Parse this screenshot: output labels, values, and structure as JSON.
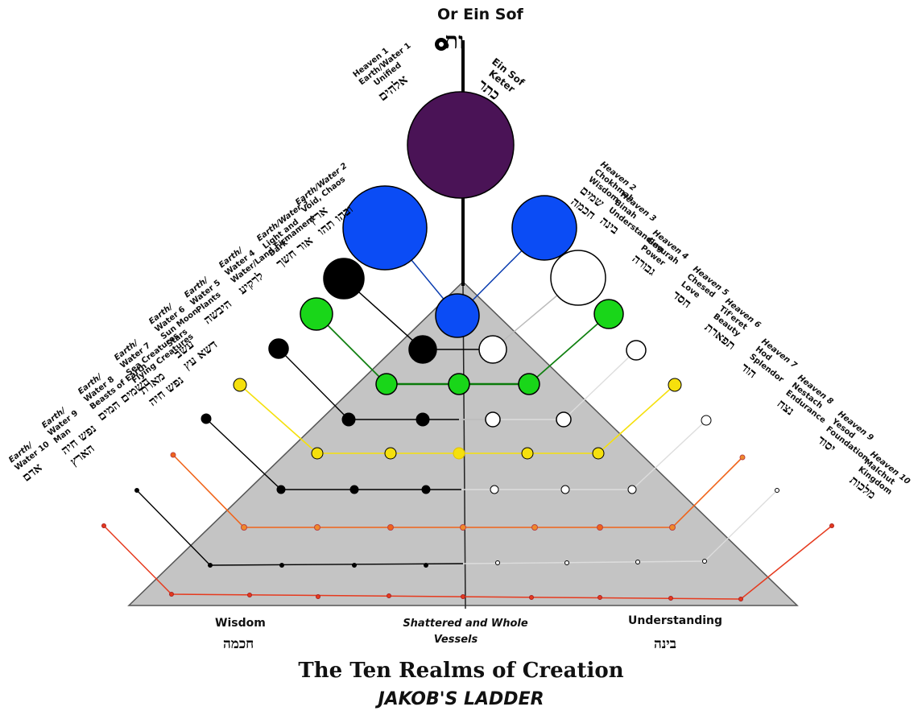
{
  "top": {
    "title": "Or Ein Sof",
    "glyph": "ות"
  },
  "crown_labels": {
    "left_lines": [
      "Heaven 1",
      "Earth/Water 1",
      "Unified"
    ],
    "left_hebrew": "אלהים",
    "right_lines": [
      "Ein Sof",
      "Keter"
    ],
    "right_hebrew": "כתר"
  },
  "left_realms": [
    {
      "lines": [
        "Earth/Water 2",
        "Void, Chaos"
      ],
      "hebrew": [
        "ארץ",
        "ובהו תהו"
      ]
    },
    {
      "lines": [
        "Earth/Water 3",
        "Light and",
        "Dark"
      ],
      "hebrew": [
        "אור חשך"
      ]
    },
    {
      "lines": [
        "Earth/",
        "Water 4",
        "Water/Land Firmament"
      ],
      "hebrew": [
        "לרקיע"
      ]
    },
    {
      "lines": [
        "Earth/",
        "Water 5",
        "Plants"
      ],
      "hebrew": [
        "היבשה"
      ]
    },
    {
      "lines": [
        "Earth/",
        "Water 6",
        "Sun Moon",
        "Stars"
      ],
      "hebrew": [
        "עשב",
        "דשא עץ"
      ]
    },
    {
      "lines": [
        "Earth/",
        "Water 7",
        "Sea Creatures",
        "Flying Creatures"
      ],
      "hebrew": [
        "מארת",
        "נפש חיה"
      ]
    },
    {
      "lines": [
        "Earth/",
        "Water 8",
        "Beasts of Earth"
      ],
      "hebrew": [
        "השמים המים"
      ]
    },
    {
      "lines": [
        "Earth/",
        "Water 9",
        "Man"
      ],
      "hebrew": [
        "נפש חיה",
        "הארץ"
      ]
    },
    {
      "lines": [
        "Earth/",
        "Water 10"
      ],
      "hebrew": [
        "אדם"
      ]
    }
  ],
  "right_realms": [
    {
      "lines": [
        "Heaven 2",
        "Chokhmah",
        "Wisdom"
      ],
      "hebrew": [
        "שמים",
        "חכמה"
      ]
    },
    {
      "lines": [
        "Heaven 3",
        "Binah",
        "Understanding"
      ],
      "hebrew": [
        "בינה"
      ]
    },
    {
      "lines": [
        "Heaven 4",
        "Gevurah",
        "Power"
      ],
      "hebrew": [
        "גבורה"
      ]
    },
    {
      "lines": [
        "Heaven 5",
        "Chesed",
        "Love"
      ],
      "hebrew": [
        "חסד"
      ]
    },
    {
      "lines": [
        "Heaven 6",
        "Tif'eret",
        "Beauty"
      ],
      "hebrew": [
        "תפארת"
      ]
    },
    {
      "lines": [
        "Heaven 7",
        "Hod",
        "Splendor"
      ],
      "hebrew": [
        "הוד"
      ]
    },
    {
      "lines": [
        "Heaven 8",
        "Nestach",
        "Endurance"
      ],
      "hebrew": [
        "נצח"
      ]
    },
    {
      "lines": [
        "Heaven 9",
        "Yesod",
        "Foundation"
      ],
      "hebrew": [
        "יסוד"
      ]
    },
    {
      "lines": [
        "Heaven 10",
        "Malchut",
        "Kingdom"
      ],
      "hebrew": [
        "מלכות"
      ]
    }
  ],
  "base_labels": {
    "left": "Wisdom",
    "left_hebrew": "חכמה",
    "center_line1": "Shattered and Whole",
    "center_line2": "Vessels",
    "right": "Understanding",
    "right_hebrew": "בינה"
  },
  "titles": {
    "main": "The Ten Realms of Creation",
    "sub": "JAKOB'S LADDER"
  },
  "colors": {
    "crown": "#4a1356",
    "blue": "#0b4cf5",
    "green": "#19d619",
    "yellow": "#f5e00d",
    "orange": "#f0641a",
    "red": "#e63a1e",
    "black": "#000000",
    "white": "#ffffff",
    "pyramid": "#c4c4c4"
  }
}
